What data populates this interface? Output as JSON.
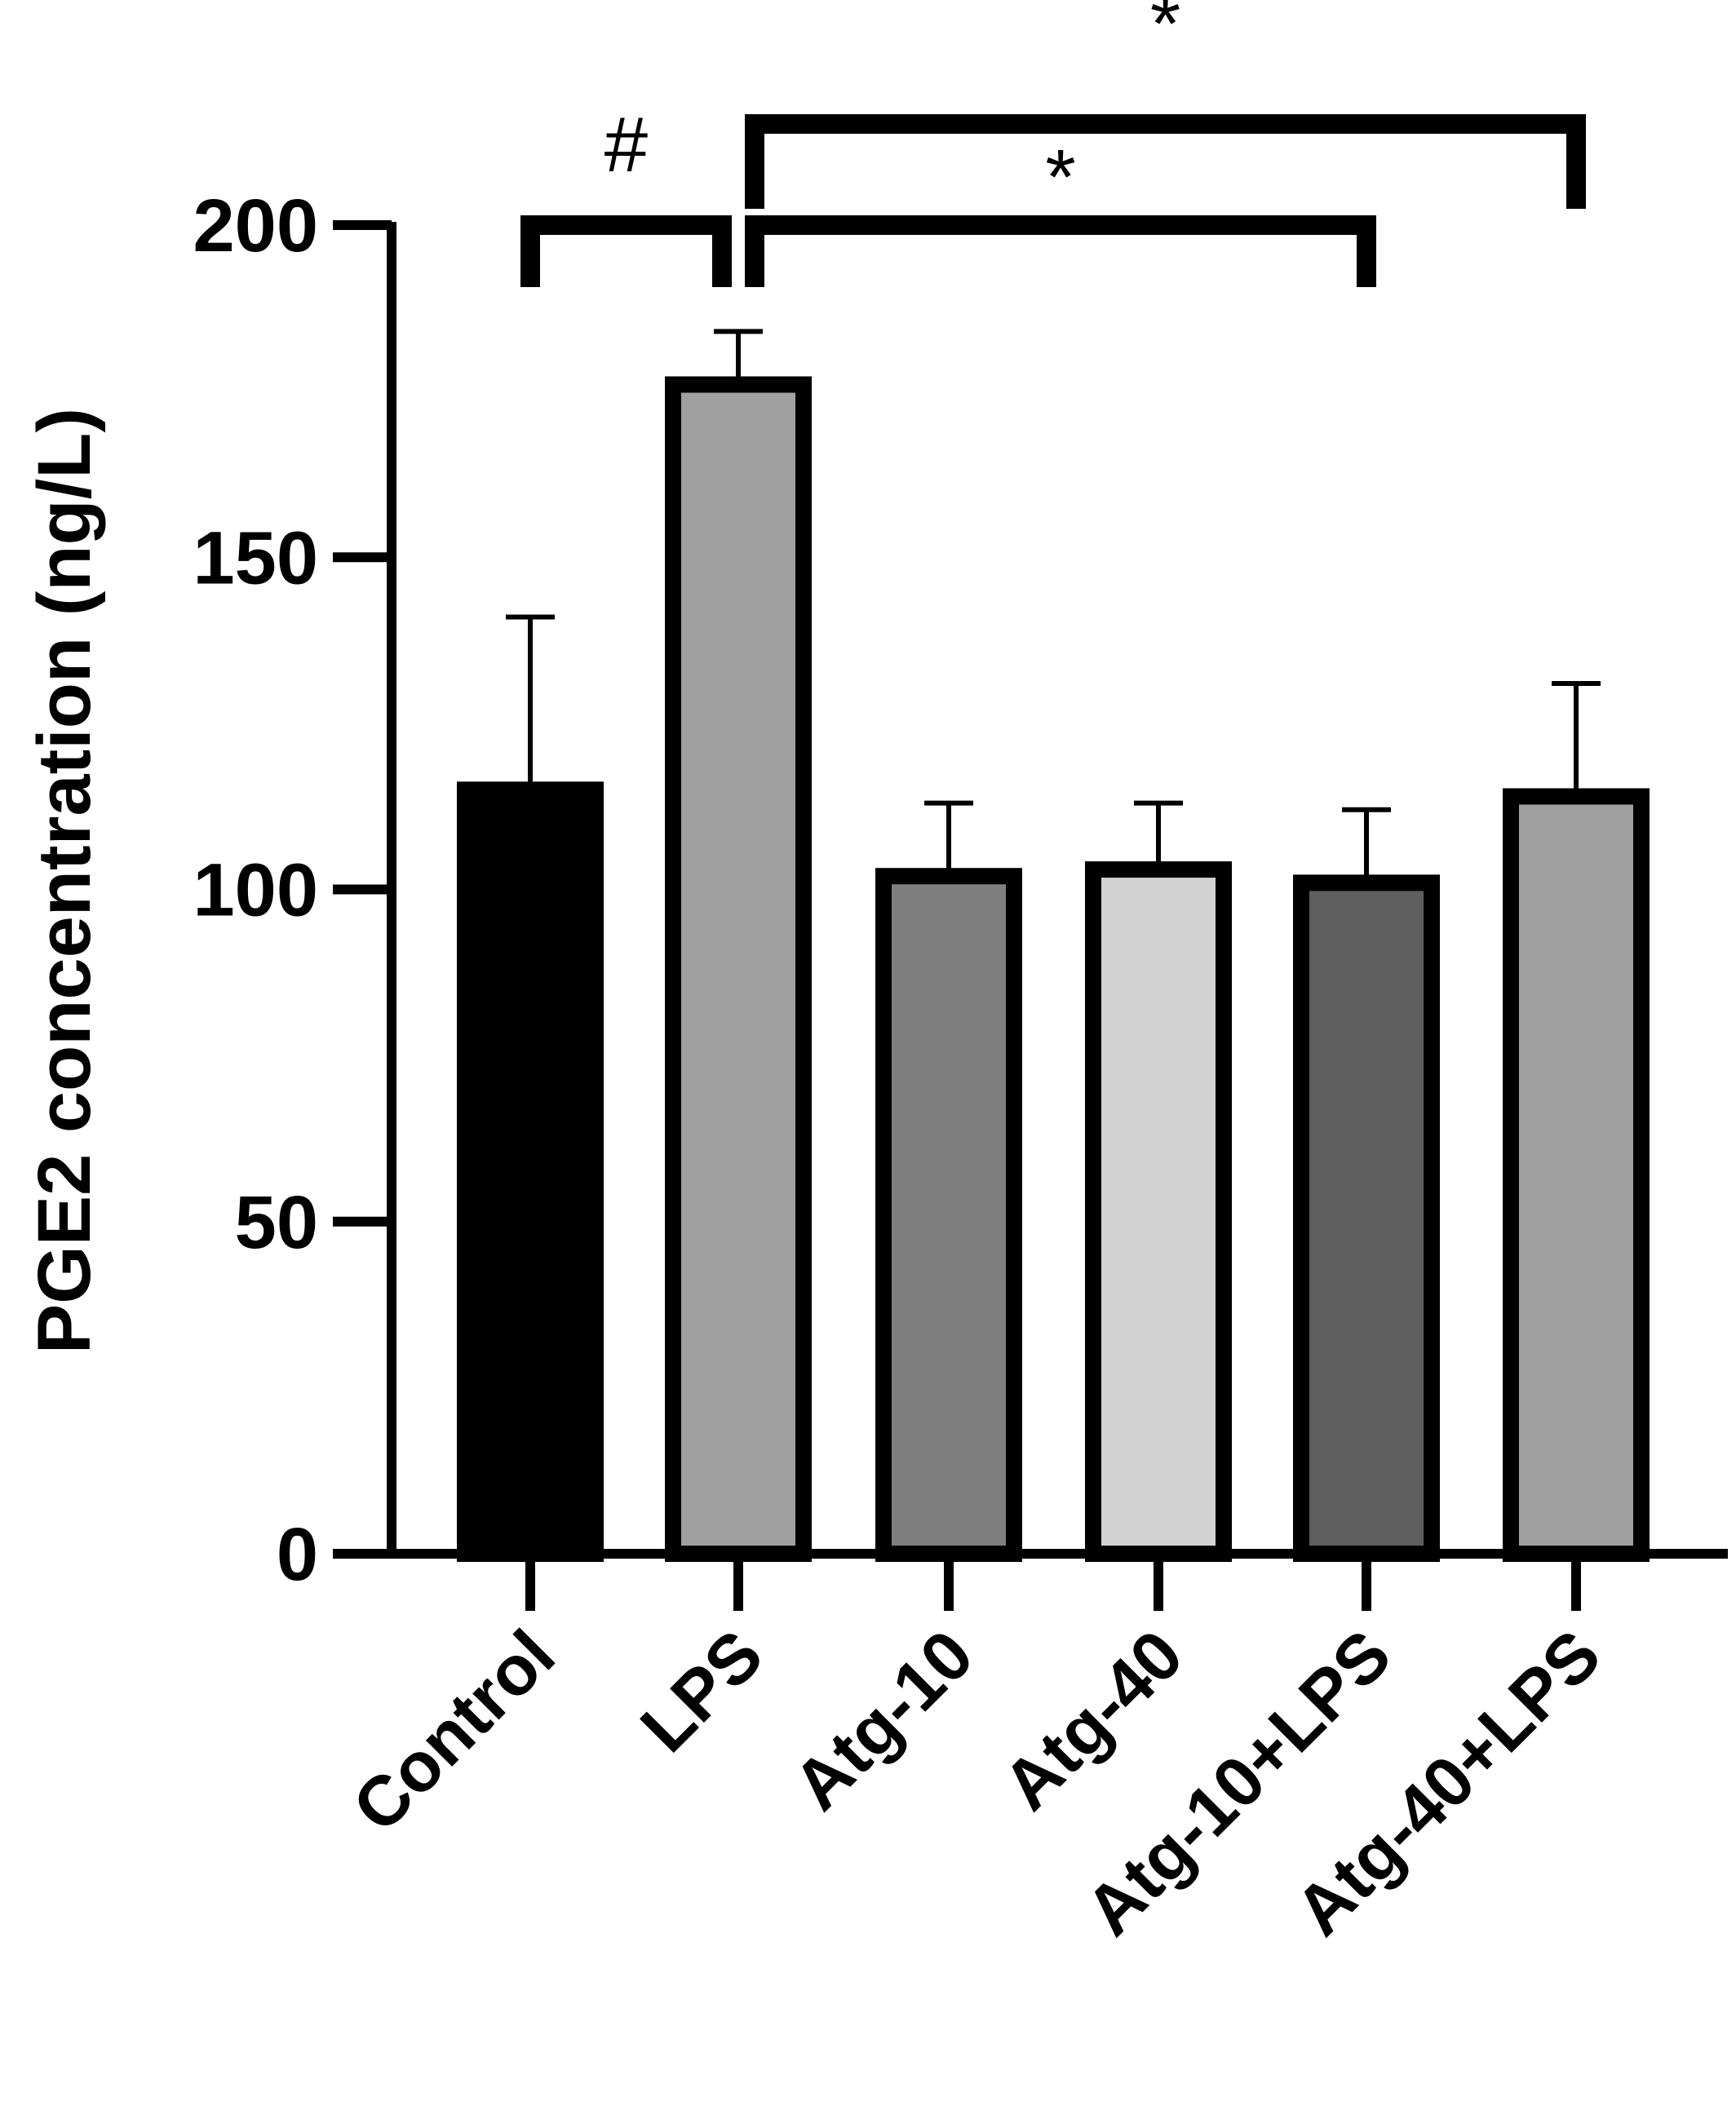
{
  "chart_data": {
    "type": "bar",
    "categories": [
      "Control",
      "LPS",
      "Atg-10",
      "Atg-40",
      "Atg-10+LPS",
      "Atg-40+LPS"
    ],
    "values": [
      115,
      176,
      102,
      103,
      101,
      114
    ],
    "errors": [
      26,
      8,
      11,
      10,
      11,
      17
    ],
    "colors": [
      "#000000",
      "#a0a0a0",
      "#7f7f7f",
      "#d3d3d3",
      "#5e5e5e",
      "#a0a0a0"
    ],
    "ylabel": "PGE2 concentration (ng/L)",
    "yticks": [
      "0",
      "50",
      "100",
      "150",
      "200"
    ],
    "ylim": [
      0,
      200
    ],
    "significance": [
      {
        "from": 0,
        "to": 1,
        "label": "#"
      },
      {
        "from": 1,
        "to": 4,
        "label": "*"
      },
      {
        "from": 1,
        "to": 5,
        "label": "*"
      }
    ]
  }
}
